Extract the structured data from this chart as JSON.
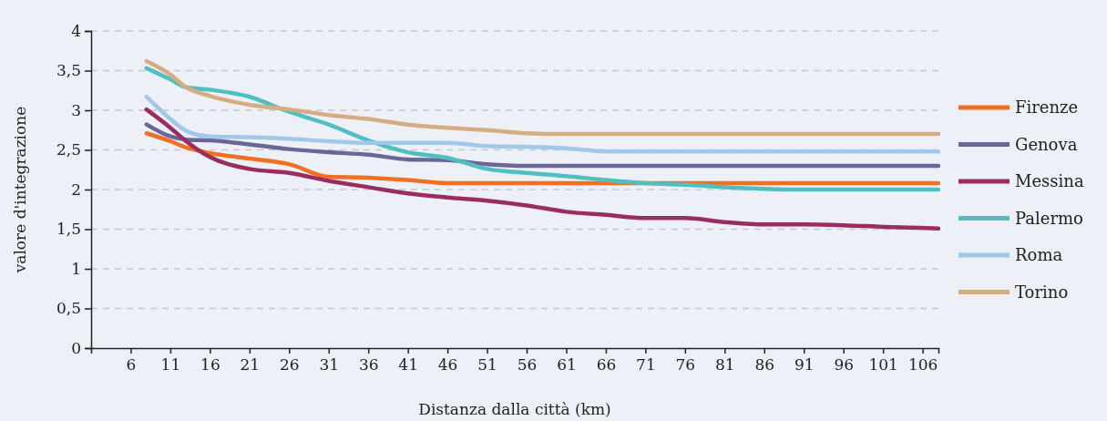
{
  "chart_data": {
    "type": "line",
    "xlabel": "Distanza dalla città (km)",
    "ylabel": "valore d'integrazione",
    "x": [
      8,
      11,
      13,
      16,
      21,
      26,
      31,
      36,
      41,
      46,
      51,
      56,
      61,
      66,
      71,
      76,
      81,
      86,
      91,
      96,
      101,
      108
    ],
    "xlim": [
      1,
      108
    ],
    "xticks": [
      6,
      11,
      16,
      21,
      26,
      31,
      36,
      41,
      46,
      51,
      56,
      61,
      66,
      71,
      76,
      81,
      86,
      91,
      96,
      101,
      106
    ],
    "ylim": [
      0,
      4
    ],
    "yticks": [
      0,
      {
        "value": 0.5,
        "label": "0,5"
      },
      1,
      {
        "value": 1.5,
        "label": "1,5"
      },
      2,
      {
        "value": 2.5,
        "label": "2,5"
      },
      3,
      {
        "value": 3.5,
        "label": "3,5"
      },
      4
    ],
    "grid": "y",
    "legend": "right",
    "marker": "none",
    "line_style": "solid",
    "series": [
      {
        "name": "Firenze",
        "color": "#f07021",
        "values": [
          2.71,
          2.61,
          2.53,
          2.46,
          2.39,
          2.32,
          2.16,
          2.15,
          2.12,
          2.08,
          2.08,
          2.08,
          2.08,
          2.08,
          2.08,
          2.08,
          2.08,
          2.08,
          2.08,
          2.08,
          2.08,
          2.08
        ]
      },
      {
        "name": "Genova",
        "color": "#6a6699",
        "values": [
          2.82,
          2.67,
          2.63,
          2.62,
          2.57,
          2.51,
          2.47,
          2.44,
          2.38,
          2.37,
          2.32,
          2.3,
          2.3,
          2.3,
          2.3,
          2.3,
          2.3,
          2.3,
          2.3,
          2.3,
          2.3,
          2.3
        ]
      },
      {
        "name": "Messina",
        "color": "#9b2c62",
        "values": [
          3.01,
          2.78,
          2.61,
          2.41,
          2.26,
          2.21,
          2.11,
          2.03,
          1.95,
          1.9,
          1.86,
          1.8,
          1.72,
          1.68,
          1.64,
          1.64,
          1.59,
          1.56,
          1.56,
          1.55,
          1.53,
          1.51
        ]
      },
      {
        "name": "Palermo",
        "color": "#4fbfc0",
        "values": [
          3.53,
          3.39,
          3.29,
          3.26,
          3.17,
          2.98,
          2.82,
          2.62,
          2.47,
          2.4,
          2.26,
          2.21,
          2.17,
          2.12,
          2.08,
          2.06,
          2.03,
          2.01,
          2.0,
          2.0,
          2.0,
          2.0
        ]
      },
      {
        "name": "Roma",
        "color": "#a0c8e8",
        "values": [
          3.17,
          2.89,
          2.74,
          2.67,
          2.66,
          2.64,
          2.61,
          2.59,
          2.59,
          2.59,
          2.55,
          2.54,
          2.52,
          2.48,
          2.48,
          2.48,
          2.48,
          2.48,
          2.48,
          2.48,
          2.48,
          2.48
        ]
      },
      {
        "name": "Torino",
        "color": "#d6ad83",
        "values": [
          3.62,
          3.45,
          3.29,
          3.18,
          3.07,
          3.01,
          2.94,
          2.89,
          2.82,
          2.78,
          2.75,
          2.71,
          2.7,
          2.7,
          2.7,
          2.7,
          2.7,
          2.7,
          2.7,
          2.7,
          2.7,
          2.7
        ]
      }
    ]
  }
}
